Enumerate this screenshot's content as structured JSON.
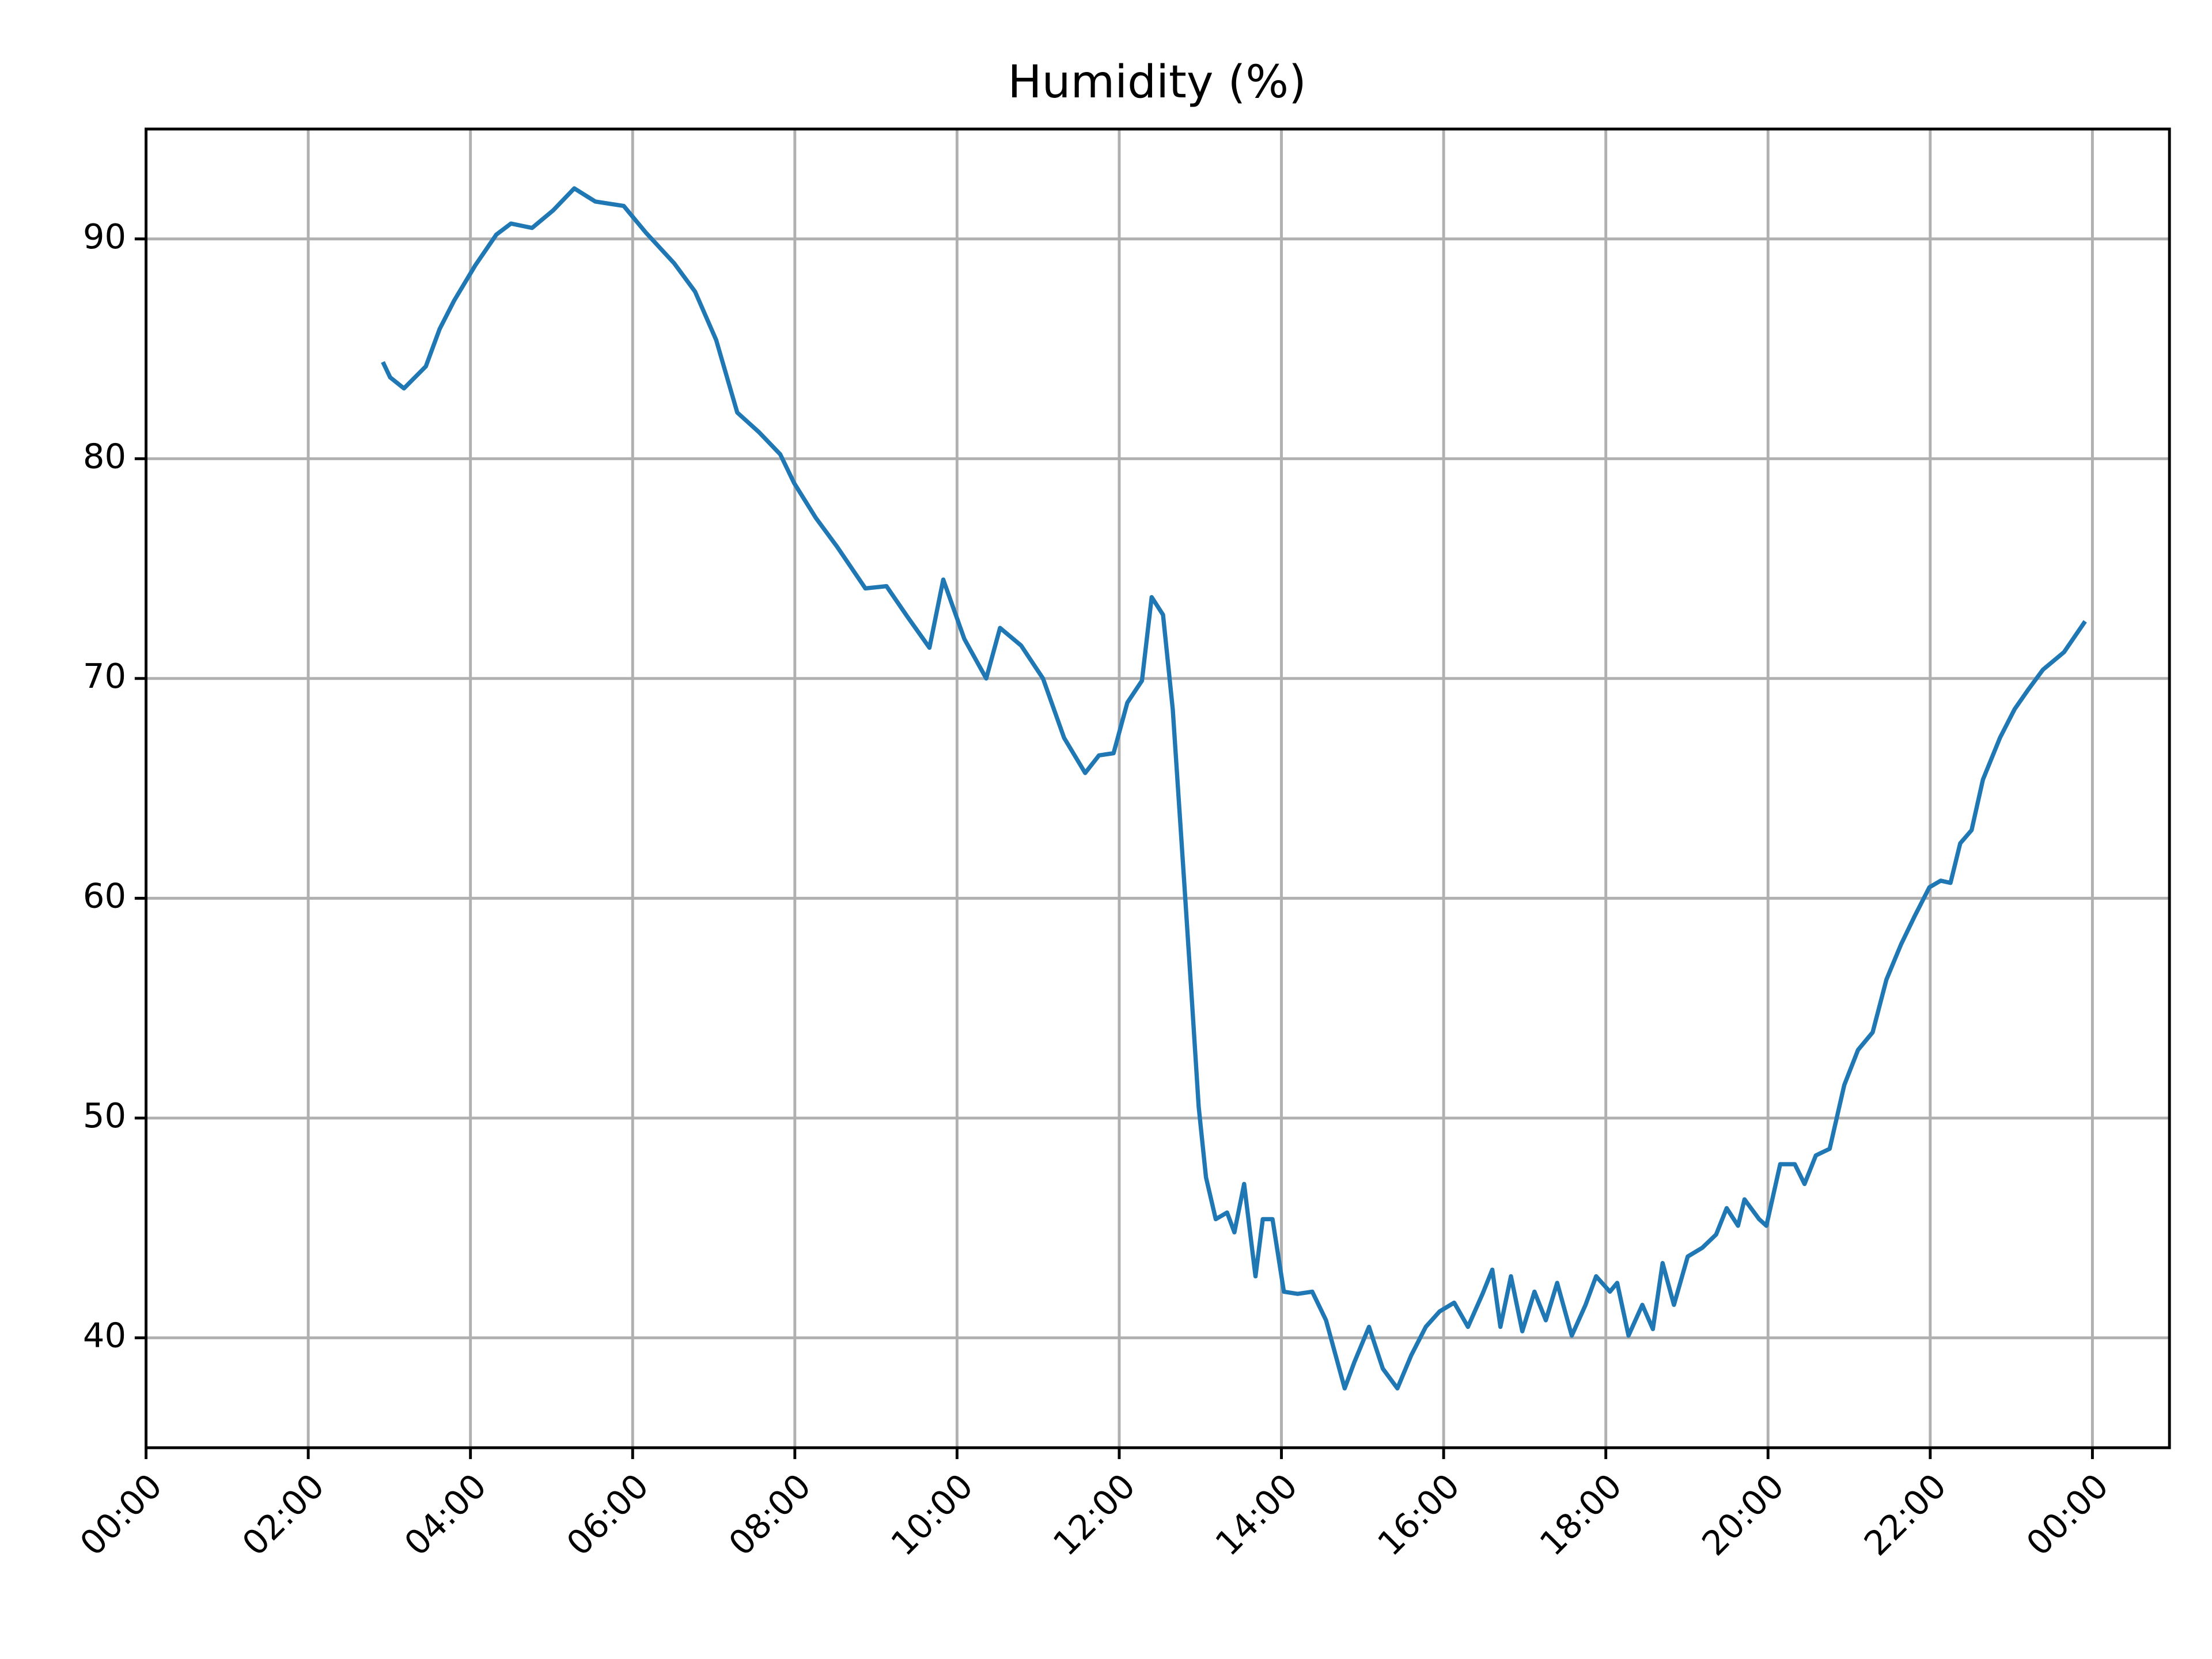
{
  "chart_data": {
    "type": "line",
    "title": "Humidity (%)",
    "color": "#1f77b4",
    "grid": true,
    "xlim": [
      0,
      24.95
    ],
    "ylim": [
      35,
      95
    ],
    "xticks": [
      {
        "value": 0,
        "label": "00:00"
      },
      {
        "value": 2,
        "label": "02:00"
      },
      {
        "value": 4,
        "label": "04:00"
      },
      {
        "value": 6,
        "label": "06:00"
      },
      {
        "value": 8,
        "label": "08:00"
      },
      {
        "value": 10,
        "label": "10:00"
      },
      {
        "value": 12,
        "label": "12:00"
      },
      {
        "value": 14,
        "label": "14:00"
      },
      {
        "value": 16,
        "label": "16:00"
      },
      {
        "value": 18,
        "label": "18:00"
      },
      {
        "value": 20,
        "label": "20:00"
      },
      {
        "value": 22,
        "label": "22:00"
      },
      {
        "value": 24,
        "label": "00:00"
      }
    ],
    "yticks": [
      40,
      50,
      60,
      70,
      80,
      90
    ],
    "x": [
      2.92,
      3.01,
      3.18,
      3.45,
      3.62,
      3.8,
      4.06,
      4.32,
      4.5,
      4.76,
      5.02,
      5.28,
      5.54,
      5.89,
      6.16,
      6.51,
      6.77,
      7.03,
      7.29,
      7.56,
      7.82,
      7.99,
      8.26,
      8.52,
      8.87,
      9.13,
      9.39,
      9.66,
      9.83,
      10.09,
      10.36,
      10.53,
      10.79,
      11.06,
      11.32,
      11.58,
      11.75,
      11.93,
      12.1,
      12.28,
      12.4,
      12.54,
      12.66,
      12.8,
      12.89,
      12.98,
      13.07,
      13.19,
      13.33,
      13.42,
      13.54,
      13.68,
      13.77,
      13.89,
      14.03,
      14.2,
      14.38,
      14.55,
      14.78,
      14.9,
      15.08,
      15.25,
      15.43,
      15.6,
      15.78,
      15.95,
      16.13,
      16.3,
      16.48,
      16.6,
      16.7,
      16.83,
      16.97,
      17.12,
      17.26,
      17.4,
      17.58,
      17.75,
      17.88,
      18.05,
      18.14,
      18.28,
      18.45,
      18.58,
      18.7,
      18.84,
      19.01,
      19.19,
      19.36,
      19.49,
      19.63,
      19.71,
      19.89,
      19.98,
      20.15,
      20.33,
      20.45,
      20.59,
      20.76,
      20.94,
      21.11,
      21.29,
      21.46,
      21.64,
      21.81,
      21.99,
      22.13,
      22.25,
      22.37,
      22.51,
      22.65,
      22.86,
      23.04,
      23.21,
      23.39,
      23.65,
      23.91
    ],
    "values": [
      84.4,
      83.7,
      83.2,
      84.2,
      85.9,
      87.2,
      88.8,
      90.2,
      90.7,
      90.5,
      91.3,
      92.3,
      91.7,
      91.5,
      90.3,
      88.9,
      87.6,
      85.4,
      82.1,
      81.2,
      80.2,
      78.9,
      77.3,
      76.0,
      74.1,
      74.2,
      72.8,
      71.4,
      74.5,
      71.8,
      70.0,
      72.3,
      71.5,
      70.0,
      67.3,
      65.7,
      66.5,
      66.6,
      68.9,
      69.9,
      73.7,
      72.9,
      68.6,
      60.8,
      55.7,
      50.5,
      47.3,
      45.4,
      45.7,
      44.8,
      47.0,
      42.8,
      45.4,
      45.4,
      42.1,
      42.0,
      42.1,
      40.8,
      37.7,
      38.9,
      40.5,
      38.6,
      37.7,
      39.2,
      40.5,
      41.2,
      41.6,
      40.5,
      42.0,
      43.1,
      40.5,
      42.8,
      40.3,
      42.1,
      40.8,
      42.5,
      40.1,
      41.5,
      42.8,
      42.1,
      42.5,
      40.1,
      41.5,
      40.4,
      43.4,
      41.5,
      43.7,
      44.1,
      44.7,
      45.9,
      45.1,
      46.3,
      45.4,
      45.1,
      47.9,
      47.9,
      47.0,
      48.3,
      48.6,
      51.5,
      53.1,
      53.9,
      56.3,
      57.9,
      59.2,
      60.5,
      60.8,
      60.7,
      62.5,
      63.1,
      65.4,
      67.3,
      68.6,
      69.5,
      70.4,
      71.2,
      72.6
    ]
  }
}
